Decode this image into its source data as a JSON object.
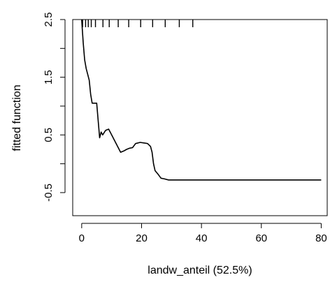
{
  "chart_data": {
    "type": "line",
    "title": "",
    "xlabel": "landw_anteil  (52.5%)",
    "ylabel": "fitted function",
    "xlim": [
      -3,
      82
    ],
    "ylim": [
      -0.9,
      2.5
    ],
    "x_ticks": [
      0,
      20,
      40,
      60,
      80
    ],
    "x_tick_labels": [
      "0",
      "20",
      "40",
      "60",
      "80"
    ],
    "y_ticks": [
      -0.5,
      0,
      0.5,
      1,
      1.5,
      2,
      2.5
    ],
    "y_tick_labels": [
      "-0.5",
      "",
      "0.5",
      "",
      "1.5",
      "",
      "2.5"
    ],
    "grid": false,
    "rug": [
      0.3,
      1.3,
      2.2,
      3.2,
      4.6,
      7.1,
      9.2,
      12.2,
      15.7,
      19.7,
      23.7,
      27.9,
      32.6,
      37.1
    ],
    "series": [
      {
        "x": [
          0.0,
          0.5,
          1.0,
          1.5,
          2.5,
          3.0,
          3.5,
          4.0,
          5.0,
          5.5,
          6.0,
          6.5,
          7.0,
          8.0,
          9.0,
          10.0,
          11.0,
          12.0,
          13.0,
          14.0,
          15.0,
          16.0,
          17.0,
          18.0,
          19.5,
          21.0,
          22.0,
          23.0,
          23.5,
          24.0,
          24.5,
          25.5,
          26.5,
          27.5,
          29.0,
          30.0,
          40.0,
          50.0,
          60.0,
          70.0,
          80.0
        ],
        "y": [
          2.5,
          2.1,
          1.8,
          1.65,
          1.45,
          1.2,
          1.05,
          1.05,
          1.05,
          0.75,
          0.45,
          0.55,
          0.5,
          0.58,
          0.6,
          0.5,
          0.4,
          0.3,
          0.2,
          0.22,
          0.25,
          0.27,
          0.28,
          0.35,
          0.37,
          0.36,
          0.35,
          0.3,
          0.2,
          0.0,
          -0.12,
          -0.18,
          -0.25,
          -0.26,
          -0.28,
          -0.28,
          -0.28,
          -0.28,
          -0.28,
          -0.28,
          -0.28
        ]
      }
    ]
  }
}
